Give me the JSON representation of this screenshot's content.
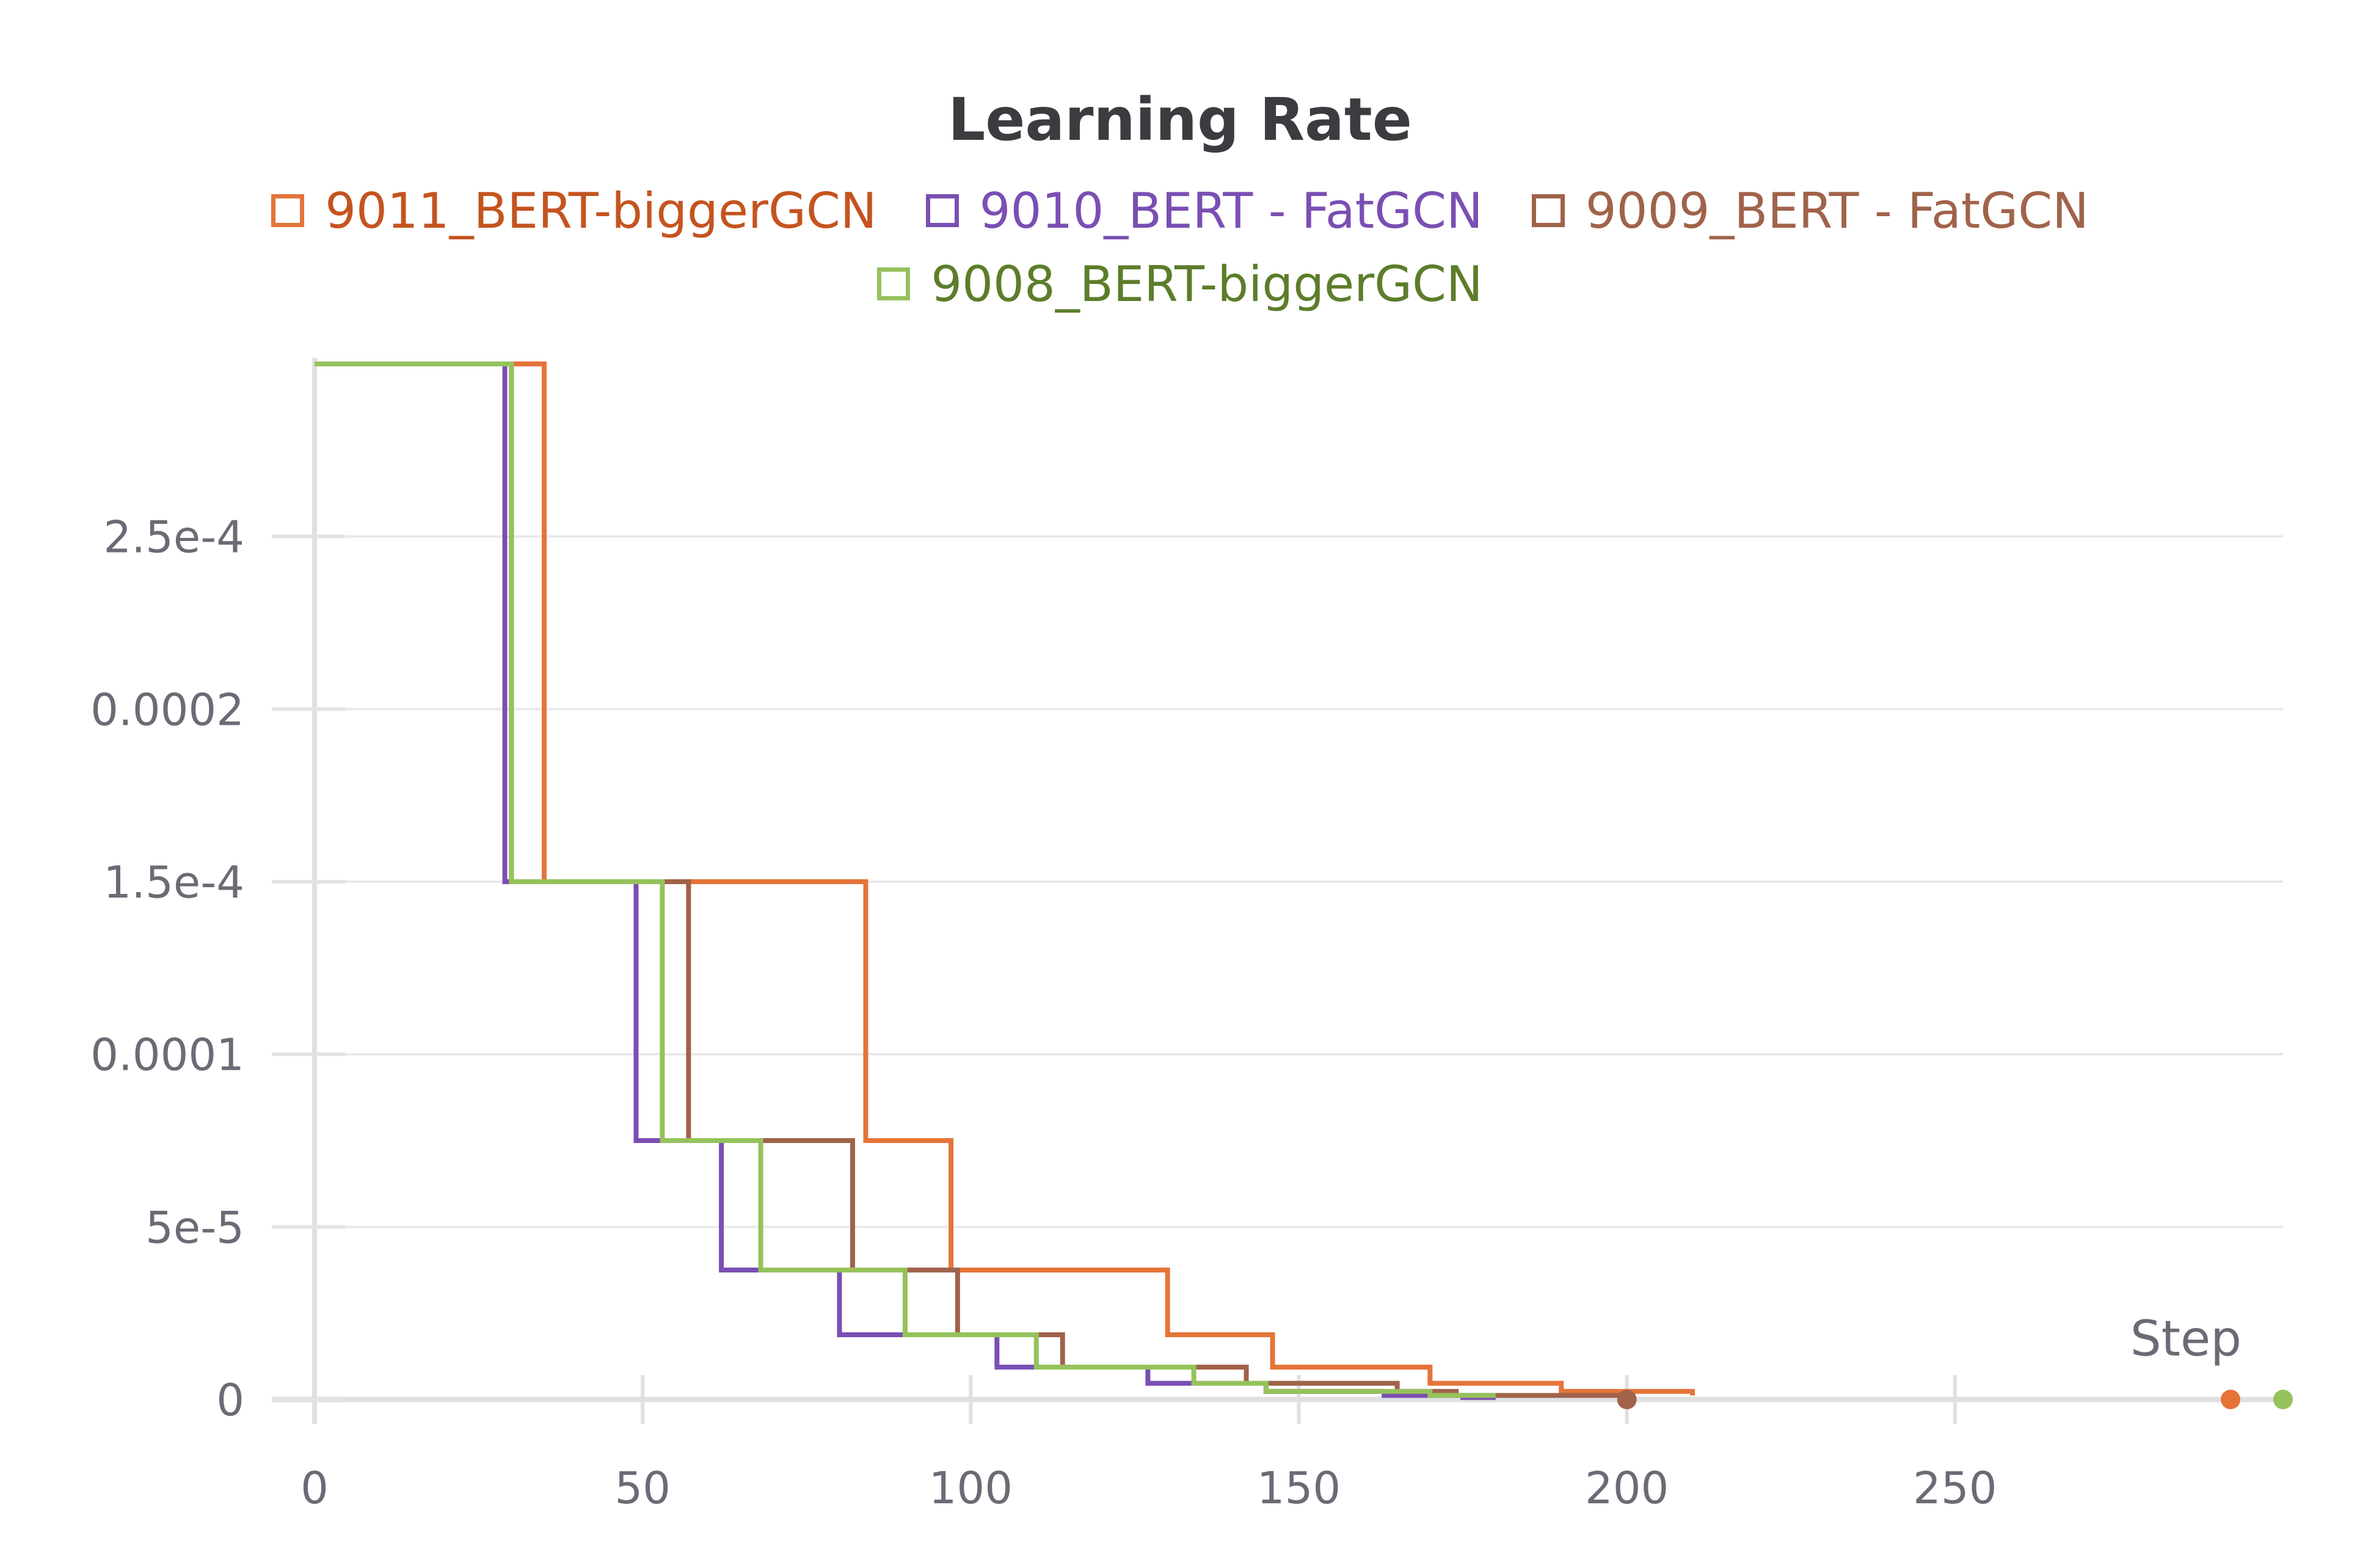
{
  "chart_data": {
    "type": "line",
    "title": "Learning Rate",
    "xlabel": "Step",
    "ylabel": "",
    "xlim": [
      0,
      300
    ],
    "ylim": [
      0,
      0.0003
    ],
    "grid": true,
    "legend_position": "top",
    "x_ticks": [
      {
        "value": 0,
        "label": "0"
      },
      {
        "value": 50,
        "label": "50"
      },
      {
        "value": 100,
        "label": "100"
      },
      {
        "value": 150,
        "label": "150"
      },
      {
        "value": 200,
        "label": "200"
      },
      {
        "value": 250,
        "label": "250"
      }
    ],
    "y_ticks": [
      {
        "value": 0,
        "label": "0"
      },
      {
        "value": 5e-05,
        "label": "5e-5"
      },
      {
        "value": 0.0001,
        "label": "0.0001"
      },
      {
        "value": 0.00015,
        "label": "1.5e-4"
      },
      {
        "value": 0.0002,
        "label": "0.0002"
      },
      {
        "value": 0.00025,
        "label": "2.5e-4"
      }
    ],
    "series": [
      {
        "name": "9011_BERT-biggerGCN",
        "color": "#e57439",
        "text_color": "#c4541f",
        "steps": [
          [
            0,
            0.0003
          ],
          [
            35,
            0.00015
          ],
          [
            84,
            7.5e-05
          ],
          [
            97,
            3.75e-05
          ],
          [
            130,
            1.875e-05
          ],
          [
            146,
            9.375e-06
          ],
          [
            170,
            4.6875e-06
          ],
          [
            190,
            2.343e-06
          ],
          [
            210,
            1.1719e-06
          ]
        ],
        "end_x": 210,
        "end_marker": {
          "x": 292,
          "y": 0
        }
      },
      {
        "name": "9010_BERT - FatGCN",
        "color": "#7a4fb3",
        "text_color": "#7a4fb3",
        "steps": [
          [
            0,
            0.0003
          ],
          [
            29,
            0.00015
          ],
          [
            49,
            7.5e-05
          ],
          [
            62,
            3.75e-05
          ],
          [
            80,
            1.875e-05
          ],
          [
            104,
            9.375e-06
          ],
          [
            127,
            4.6875e-06
          ],
          [
            145,
            2.343e-06
          ],
          [
            163,
            1.1719e-06
          ],
          [
            175,
            5.859e-07
          ]
        ],
        "end_x": 180,
        "end_marker": null
      },
      {
        "name": "9009_BERT - FatGCN",
        "color": "#a0634a",
        "text_color": "#a0634a",
        "steps": [
          [
            0,
            0.0003
          ],
          [
            30,
            0.00015
          ],
          [
            57,
            7.5e-05
          ],
          [
            82,
            3.75e-05
          ],
          [
            98,
            1.875e-05
          ],
          [
            114,
            9.375e-06
          ],
          [
            142,
            4.6875e-06
          ],
          [
            165,
            2.343e-06
          ],
          [
            174,
            1.1719e-06
          ]
        ],
        "end_x": 200,
        "end_marker": {
          "x": 200,
          "y": 0
        }
      },
      {
        "name": "9008_BERT-biggerGCN",
        "color": "#95c25c",
        "text_color": "#5c7d2a",
        "steps": [
          [
            0,
            0.0003
          ],
          [
            30,
            0.00015
          ],
          [
            53,
            7.5e-05
          ],
          [
            68,
            3.75e-05
          ],
          [
            90,
            1.875e-05
          ],
          [
            110,
            9.375e-06
          ],
          [
            134,
            4.6875e-06
          ],
          [
            145,
            2.343e-06
          ],
          [
            170,
            1.1719e-06
          ]
        ],
        "end_x": 180,
        "end_marker": {
          "x": 300,
          "y": 0
        }
      }
    ]
  }
}
